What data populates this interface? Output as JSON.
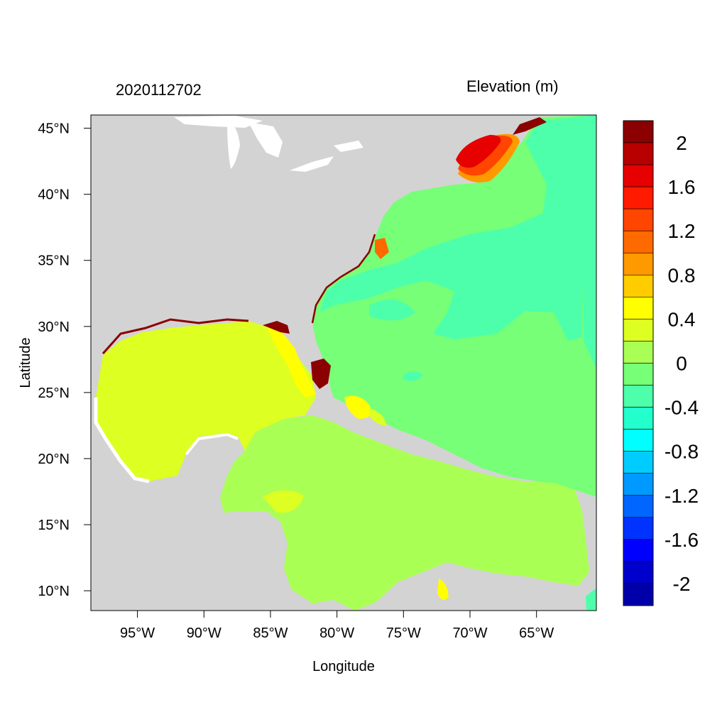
{
  "map": {
    "timestamp": "2020112702",
    "variable_title": "Elevation (m)",
    "x_axis_label": "Longitude",
    "y_axis_label": "Latitude",
    "lon_range": [
      -98.5,
      -60.5
    ],
    "lat_range": [
      8.5,
      46.0
    ],
    "lon_ticks": [
      {
        "value": -95,
        "label": "95°W"
      },
      {
        "value": -90,
        "label": "90°W"
      },
      {
        "value": -85,
        "label": "85°W"
      },
      {
        "value": -80,
        "label": "80°W"
      },
      {
        "value": -75,
        "label": "75°W"
      },
      {
        "value": -70,
        "label": "70°W"
      },
      {
        "value": -65,
        "label": "65°W"
      }
    ],
    "lat_ticks": [
      {
        "value": 45,
        "label": "45°N"
      },
      {
        "value": 40,
        "label": "40°N"
      },
      {
        "value": 35,
        "label": "35°N"
      },
      {
        "value": 30,
        "label": "30°N"
      },
      {
        "value": 25,
        "label": "25°N"
      },
      {
        "value": 20,
        "label": "20°N"
      },
      {
        "value": 15,
        "label": "15°N"
      },
      {
        "value": 10,
        "label": "10°N"
      }
    ],
    "land_color": "#d3d3d3",
    "lake_color": "#ffffff"
  },
  "colorbar": {
    "colors_top_to_bottom": [
      "#8b0000",
      "#b80000",
      "#e60000",
      "#ff1a00",
      "#ff4500",
      "#ff6a00",
      "#ff9900",
      "#ffcc00",
      "#ffff00",
      "#ddff22",
      "#aaff55",
      "#77ff77",
      "#4dffaa",
      "#22ffcc",
      "#00ffff",
      "#00ccff",
      "#0099ff",
      "#0066ff",
      "#0033ff",
      "#0000ff",
      "#0000cc",
      "#0000aa"
    ],
    "labels": [
      "2",
      "1.6",
      "1.2",
      "0.8",
      "0.4",
      "0",
      "-0.4",
      "-0.8",
      "-1.2",
      "-1.6",
      "-2"
    ]
  }
}
